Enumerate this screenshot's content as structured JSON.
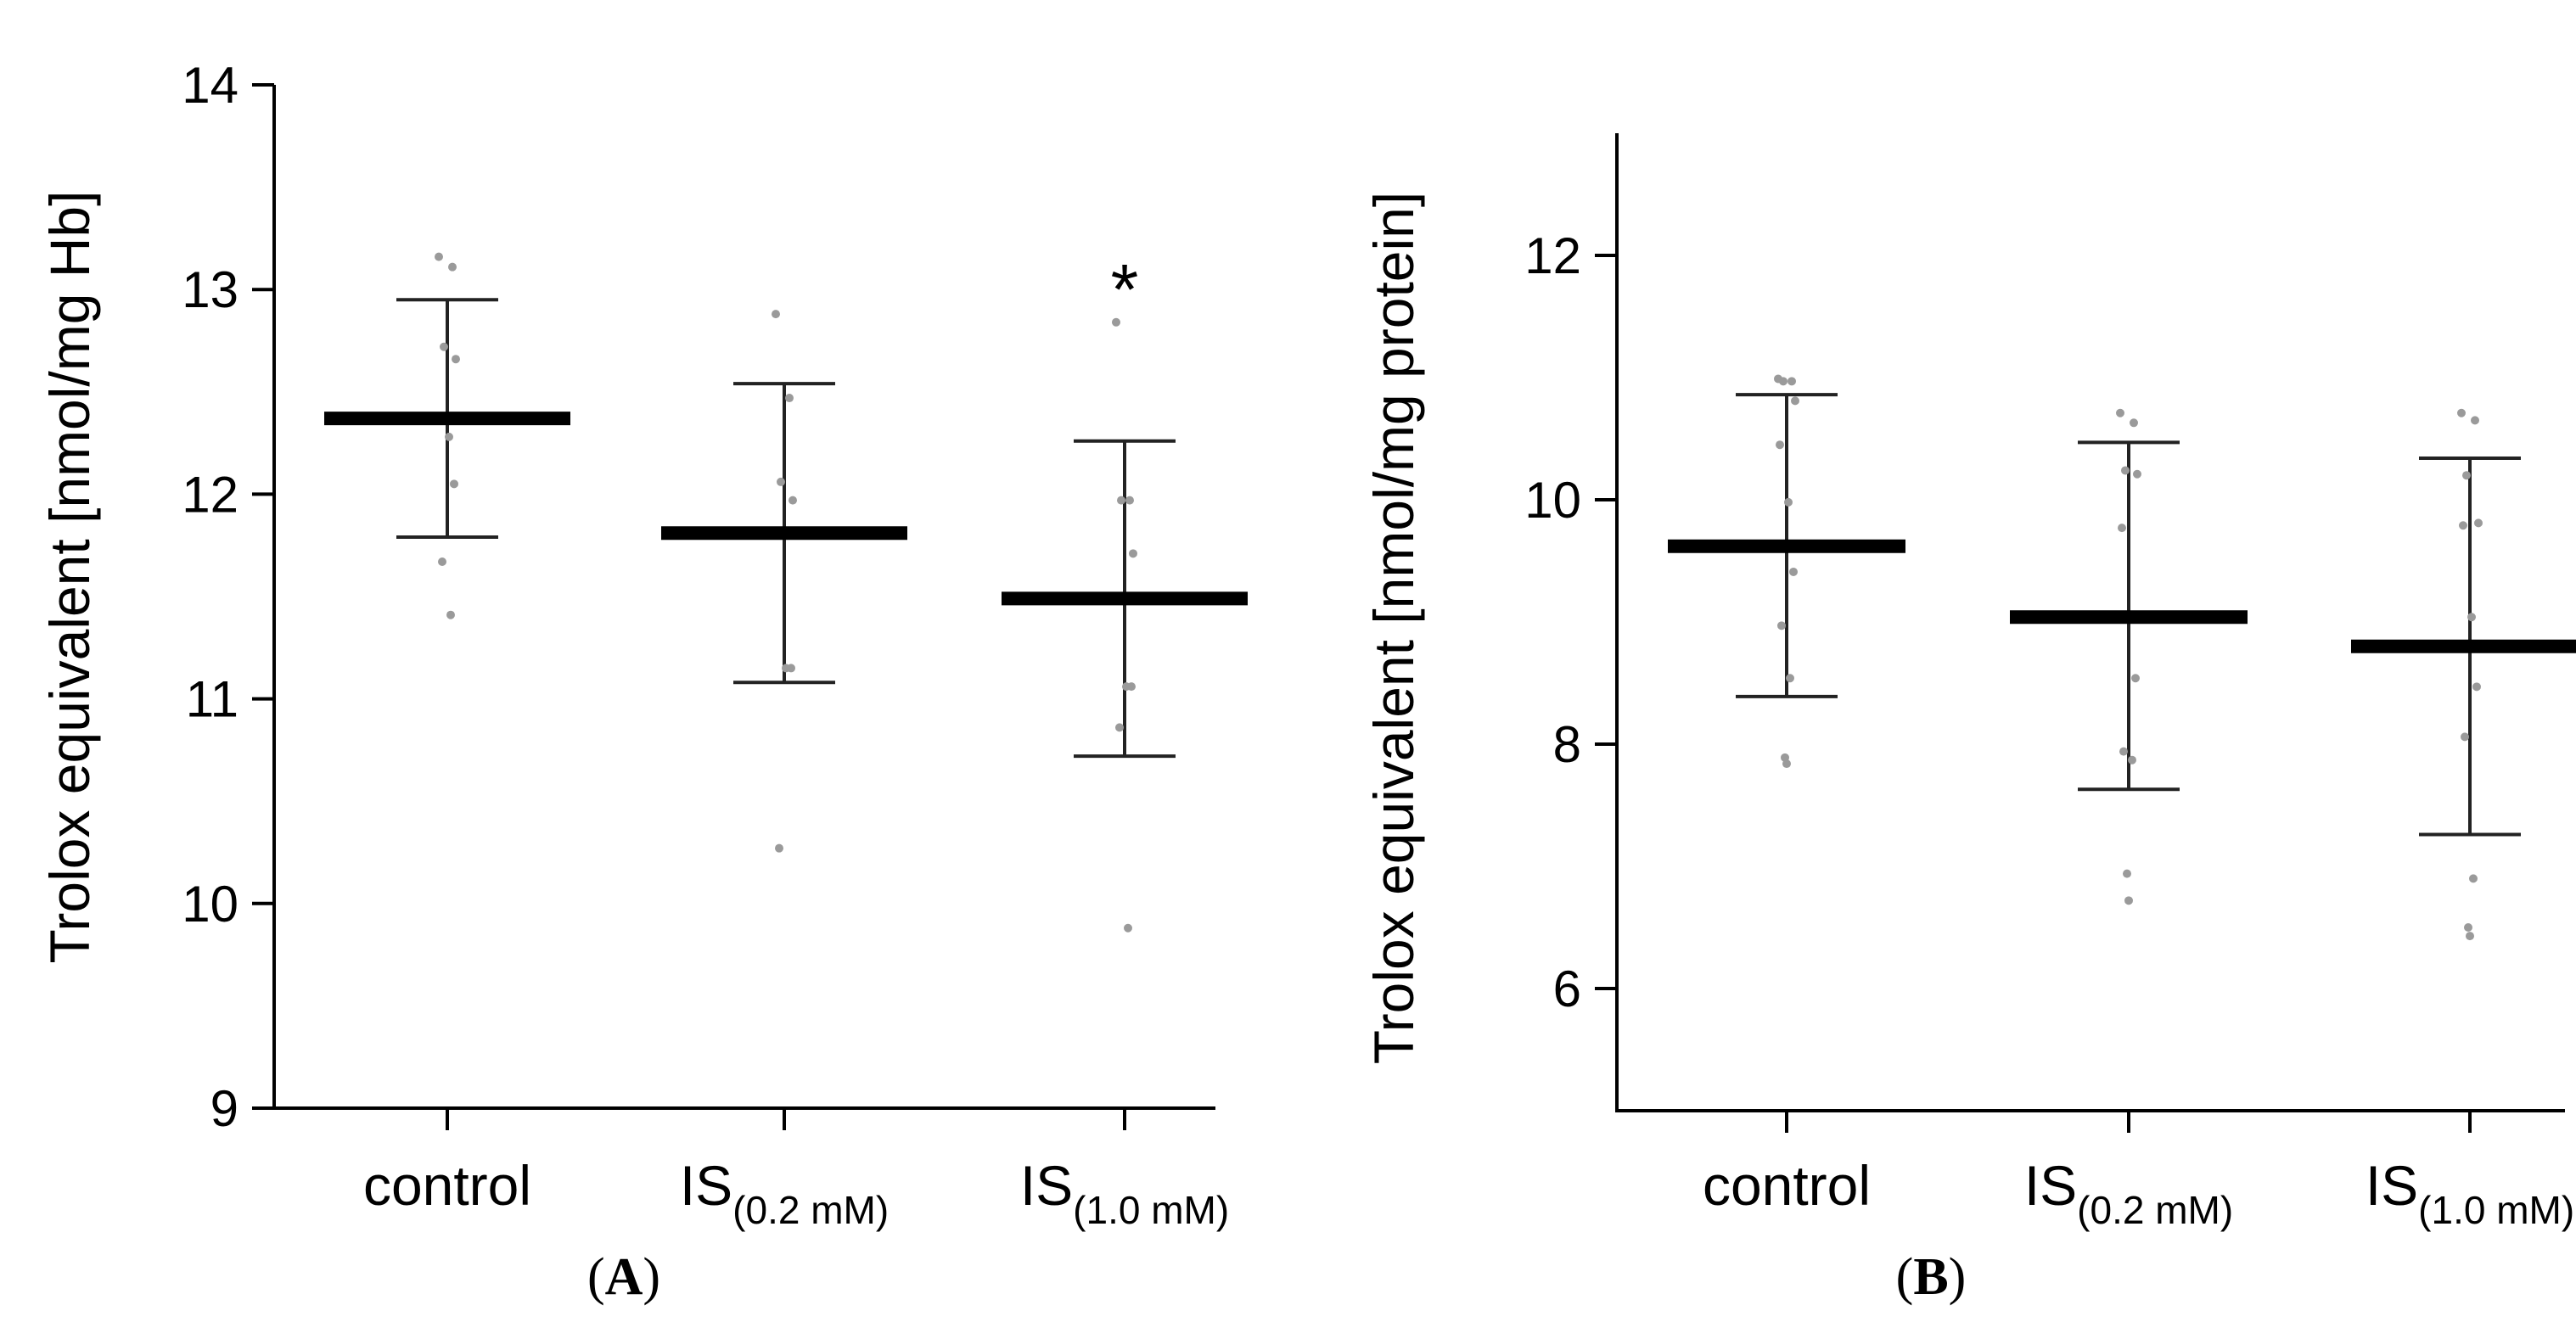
{
  "chart_data": [
    {
      "type": "scatter",
      "panel": "A",
      "ylabel": "Trolox equivalent [nmol/mg Hb]",
      "ylim": [
        9,
        14
      ],
      "yticks": [
        9,
        10,
        11,
        12,
        13,
        14
      ],
      "categories": [
        {
          "main": "control",
          "sub": ""
        },
        {
          "main": "IS",
          "sub": "(0.2 mM)"
        },
        {
          "main": "IS",
          "sub": "(1.0 mM)"
        }
      ],
      "groups": [
        {
          "mean": 12.37,
          "sd_low": 11.79,
          "sd_high": 12.95,
          "points": [
            13.16,
            13.11,
            12.72,
            12.66,
            12.36,
            12.28,
            12.05,
            11.67,
            11.41
          ],
          "annotation": ""
        },
        {
          "mean": 11.81,
          "sd_low": 11.08,
          "sd_high": 12.54,
          "points": [
            12.88,
            12.47,
            12.06,
            11.97,
            11.82,
            11.15,
            11.15,
            10.27
          ],
          "annotation": ""
        },
        {
          "mean": 11.49,
          "sd_low": 10.72,
          "sd_high": 12.26,
          "points": [
            12.84,
            11.97,
            11.97,
            11.71,
            11.49,
            11.06,
            11.06,
            10.86,
            9.88
          ],
          "annotation": "*"
        }
      ]
    },
    {
      "type": "scatter",
      "panel": "B",
      "ylabel": "Trolox equivalent [nmol/mg protein]",
      "ylim": [
        5,
        13
      ],
      "yticks": [
        6,
        8,
        10,
        12
      ],
      "categories": [
        {
          "main": "control",
          "sub": ""
        },
        {
          "main": "IS",
          "sub": "(0.2 mM)"
        },
        {
          "main": "IS",
          "sub": "(1.0 mM)"
        }
      ],
      "groups": [
        {
          "mean": 9.62,
          "sd_low": 8.39,
          "sd_high": 10.86,
          "points": [
            10.99,
            10.97,
            10.97,
            10.81,
            10.45,
            9.98,
            9.41,
            8.97,
            8.54,
            7.89,
            7.84
          ],
          "annotation": ""
        },
        {
          "mean": 9.04,
          "sd_low": 7.63,
          "sd_high": 10.47,
          "points": [
            10.71,
            10.63,
            10.24,
            10.21,
            9.77,
            9.04,
            8.54,
            7.94,
            7.87,
            6.94,
            6.72
          ],
          "annotation": ""
        },
        {
          "mean": 8.8,
          "sd_low": 7.26,
          "sd_high": 10.34,
          "points": [
            10.71,
            10.65,
            10.2,
            9.81,
            9.79,
            9.04,
            8.47,
            8.06,
            6.9,
            6.5,
            6.43
          ],
          "annotation": ""
        }
      ]
    }
  ],
  "panels": [
    "A",
    "B"
  ]
}
